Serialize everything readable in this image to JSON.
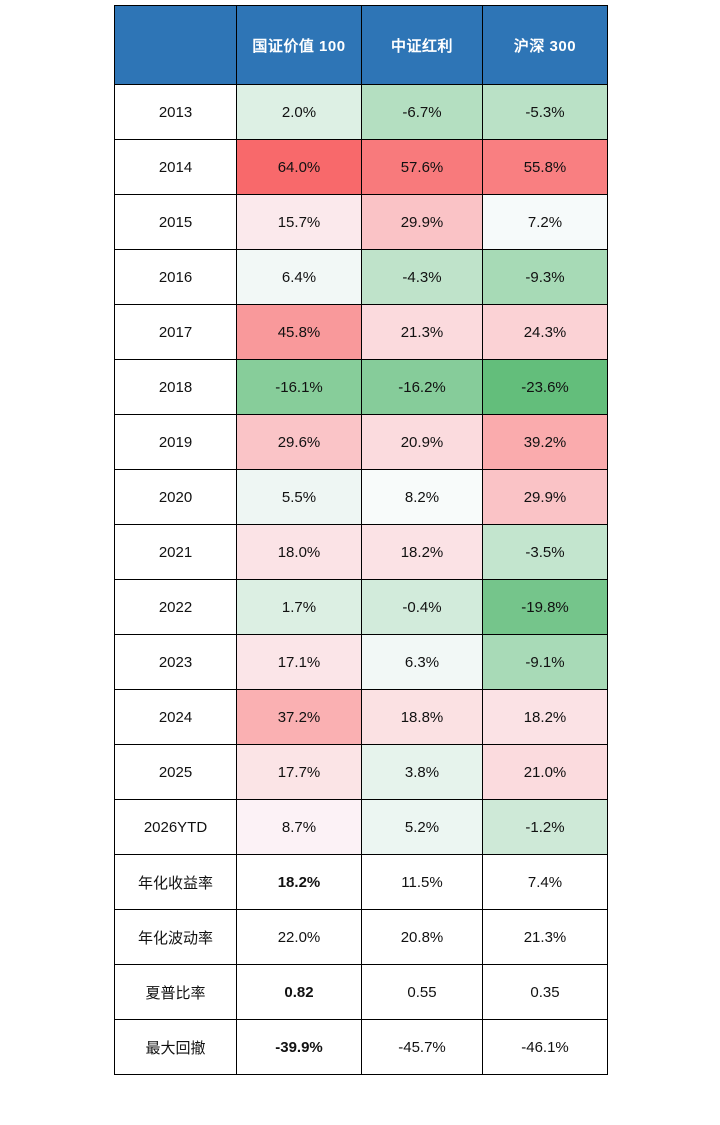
{
  "table": {
    "header": {
      "corner": "",
      "columns": [
        "国证价值 100",
        "中证红利",
        "沪深 300"
      ]
    },
    "rows": [
      {
        "label": "2013",
        "cells": [
          {
            "v": "2.0%",
            "bg": "#DDF0E4"
          },
          {
            "v": "-6.7%",
            "bg": "#B4DFC1"
          },
          {
            "v": "-5.3%",
            "bg": "#BAE1C6"
          }
        ]
      },
      {
        "label": "2014",
        "cells": [
          {
            "v": "64.0%",
            "bg": "#F8696B"
          },
          {
            "v": "57.6%",
            "bg": "#F87A7C"
          },
          {
            "v": "55.8%",
            "bg": "#F97F81"
          }
        ]
      },
      {
        "label": "2015",
        "cells": [
          {
            "v": "15.7%",
            "bg": "#FBE9EC"
          },
          {
            "v": "29.9%",
            "bg": "#FAC3C6"
          },
          {
            "v": "7.2%",
            "bg": "#F6FAFA"
          }
        ]
      },
      {
        "label": "2016",
        "cells": [
          {
            "v": "6.4%",
            "bg": "#F2F8F6"
          },
          {
            "v": "-4.3%",
            "bg": "#BFE3CA"
          },
          {
            "v": "-9.3%",
            "bg": "#A7DAB6"
          }
        ]
      },
      {
        "label": "2017",
        "cells": [
          {
            "v": "45.8%",
            "bg": "#F9999B"
          },
          {
            "v": "21.3%",
            "bg": "#FBDADD"
          },
          {
            "v": "24.3%",
            "bg": "#FBD2D5"
          }
        ]
      },
      {
        "label": "2018",
        "cells": [
          {
            "v": "-16.1%",
            "bg": "#87CD9A"
          },
          {
            "v": "-16.2%",
            "bg": "#86CC9A"
          },
          {
            "v": "-23.6%",
            "bg": "#63BE7B"
          }
        ]
      },
      {
        "label": "2019",
        "cells": [
          {
            "v": "29.6%",
            "bg": "#FAC4C7"
          },
          {
            "v": "20.9%",
            "bg": "#FBDBDE"
          },
          {
            "v": "39.2%",
            "bg": "#FAABAD"
          }
        ]
      },
      {
        "label": "2020",
        "cells": [
          {
            "v": "5.5%",
            "bg": "#EEF6F3"
          },
          {
            "v": "8.2%",
            "bg": "#F8FBFA"
          },
          {
            "v": "29.9%",
            "bg": "#FAC3C6"
          }
        ]
      },
      {
        "label": "2021",
        "cells": [
          {
            "v": "18.0%",
            "bg": "#FBE3E6"
          },
          {
            "v": "18.2%",
            "bg": "#FBE2E5"
          },
          {
            "v": "-3.5%",
            "bg": "#C3E5CE"
          }
        ]
      },
      {
        "label": "2022",
        "cells": [
          {
            "v": "1.7%",
            "bg": "#DCEFE3"
          },
          {
            "v": "-0.4%",
            "bg": "#D2EBDB"
          },
          {
            "v": "-19.8%",
            "bg": "#75C58B"
          }
        ]
      },
      {
        "label": "2023",
        "cells": [
          {
            "v": "17.1%",
            "bg": "#FBE5E8"
          },
          {
            "v": "6.3%",
            "bg": "#F2F8F6"
          },
          {
            "v": "-9.1%",
            "bg": "#A8DAB7"
          }
        ]
      },
      {
        "label": "2024",
        "cells": [
          {
            "v": "37.2%",
            "bg": "#FAB0B2"
          },
          {
            "v": "18.8%",
            "bg": "#FBE1E3"
          },
          {
            "v": "18.2%",
            "bg": "#FBE2E5"
          }
        ]
      },
      {
        "label": "2025",
        "cells": [
          {
            "v": "17.7%",
            "bg": "#FBE4E6"
          },
          {
            "v": "3.8%",
            "bg": "#E6F3EC"
          },
          {
            "v": "21.0%",
            "bg": "#FBDBDE"
          }
        ]
      },
      {
        "label": "2026YTD",
        "cells": [
          {
            "v": "8.7%",
            "bg": "#FCF2F6"
          },
          {
            "v": "5.2%",
            "bg": "#ECF6F2"
          },
          {
            "v": "-1.2%",
            "bg": "#CEE9D7"
          }
        ]
      },
      {
        "label": "年化收益率",
        "cells": [
          {
            "v": "18.2%",
            "bg": "#FFFFFF",
            "bold": true
          },
          {
            "v": "11.5%",
            "bg": "#FFFFFF"
          },
          {
            "v": "7.4%",
            "bg": "#FFFFFF"
          }
        ]
      },
      {
        "label": "年化波动率",
        "cells": [
          {
            "v": "22.0%",
            "bg": "#FFFFFF"
          },
          {
            "v": "20.8%",
            "bg": "#FFFFFF"
          },
          {
            "v": "21.3%",
            "bg": "#FFFFFF"
          }
        ]
      },
      {
        "label": "夏普比率",
        "cells": [
          {
            "v": "0.82",
            "bg": "#FFFFFF",
            "bold": true
          },
          {
            "v": "0.55",
            "bg": "#FFFFFF"
          },
          {
            "v": "0.35",
            "bg": "#FFFFFF"
          }
        ]
      },
      {
        "label": "最大回撤",
        "cells": [
          {
            "v": "-39.9%",
            "bg": "#FFFFFF",
            "bold": true
          },
          {
            "v": "-45.7%",
            "bg": "#FFFFFF"
          },
          {
            "v": "-46.1%",
            "bg": "#FFFFFF"
          }
        ]
      }
    ]
  },
  "colors": {
    "header_bg": "#2E75B6",
    "header_text": "#FFFFFF",
    "border": "#000000",
    "scale_max_red": "#F8696B",
    "scale_mid_white": "#FCFCFF",
    "scale_min_green": "#63BE7B"
  },
  "chart_data": {
    "type": "heatmap",
    "title": "",
    "columns": [
      "国证价值100",
      "中证红利",
      "沪深300"
    ],
    "row_labels": [
      "2013",
      "2014",
      "2015",
      "2016",
      "2017",
      "2018",
      "2019",
      "2020",
      "2021",
      "2022",
      "2023",
      "2024",
      "2025",
      "2026YTD",
      "年化收益率",
      "年化波动率",
      "夏普比率",
      "最大回撤"
    ],
    "matrix": [
      [
        2.0,
        -6.7,
        -5.3
      ],
      [
        64.0,
        57.6,
        55.8
      ],
      [
        15.7,
        29.9,
        7.2
      ],
      [
        6.4,
        -4.3,
        -9.3
      ],
      [
        45.8,
        21.3,
        24.3
      ],
      [
        -16.1,
        -16.2,
        -23.6
      ],
      [
        29.6,
        20.9,
        39.2
      ],
      [
        5.5,
        8.2,
        29.9
      ],
      [
        18.0,
        18.2,
        -3.5
      ],
      [
        1.7,
        -0.4,
        -19.8
      ],
      [
        17.1,
        6.3,
        -9.1
      ],
      [
        37.2,
        18.8,
        18.2
      ],
      [
        17.7,
        3.8,
        21.0
      ],
      [
        8.7,
        5.2,
        -1.2
      ],
      [
        18.2,
        11.5,
        7.4
      ],
      [
        22.0,
        20.8,
        21.3
      ],
      [
        0.82,
        0.55,
        0.35
      ],
      [
        -39.9,
        -45.7,
        -46.1
      ]
    ],
    "units": "percent for all rows except 夏普比率 (ratio)",
    "bold_cells": [
      [
        "年化收益率",
        "国证价值100"
      ],
      [
        "夏普比率",
        "国证价值100"
      ],
      [
        "最大回撤",
        "国证价值100"
      ]
    ],
    "color_scale": {
      "applies_to": "year rows 2013–2026YTD only",
      "min": {
        "value": -23.6,
        "color": "#63BE7B"
      },
      "mid": {
        "value": 8.45,
        "color": "#FCFCFF"
      },
      "max": {
        "value": 64.0,
        "color": "#F8696B"
      }
    },
    "legend_position": "none",
    "grid": true
  }
}
